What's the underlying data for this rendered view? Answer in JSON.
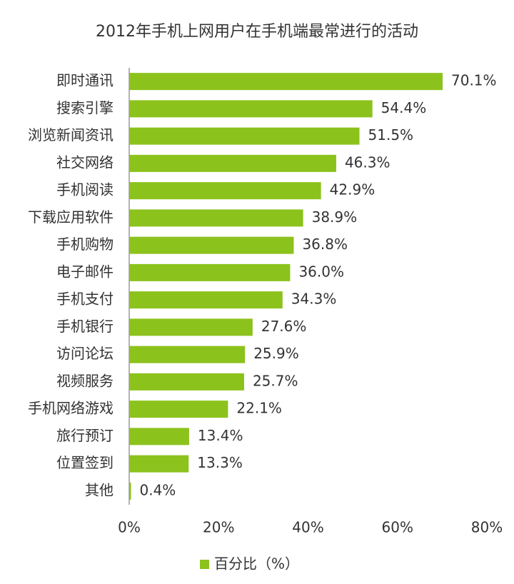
{
  "chart_data": {
    "type": "bar",
    "orientation": "horizontal",
    "title": "2012年手机上网用户在手机端最常进行的活动",
    "categories": [
      "即时通讯",
      "搜索引擎",
      "浏览新闻资讯",
      "社交网络",
      "手机阅读",
      "下载应用软件",
      "手机购物",
      "电子邮件",
      "手机支付",
      "手机银行",
      "访问论坛",
      "视频服务",
      "手机网络游戏",
      "旅行预订",
      "位置签到",
      "其他"
    ],
    "series": [
      {
        "name": "百分比（%）",
        "color": "#8cc21c",
        "values": [
          70.1,
          54.4,
          51.5,
          46.3,
          42.9,
          38.9,
          36.8,
          36.0,
          34.3,
          27.6,
          25.9,
          25.7,
          22.1,
          13.4,
          13.3,
          0.4
        ],
        "value_labels": [
          "70.1%",
          "54.4%",
          "51.5%",
          "46.3%",
          "42.9%",
          "38.9%",
          "36.8%",
          "36.0%",
          "34.3%",
          "27.6%",
          "25.9%",
          "25.7%",
          "22.1%",
          "13.4%",
          "13.3%",
          "0.4%"
        ]
      }
    ],
    "xlim": [
      0,
      80
    ],
    "xticks": [
      {
        "value": 0,
        "label": "0%"
      },
      {
        "value": 20,
        "label": "20%"
      },
      {
        "value": 40,
        "label": "40%"
      },
      {
        "value": 60,
        "label": "60%"
      },
      {
        "value": 80,
        "label": "80%"
      }
    ],
    "grid": false,
    "legend": "bottom"
  }
}
